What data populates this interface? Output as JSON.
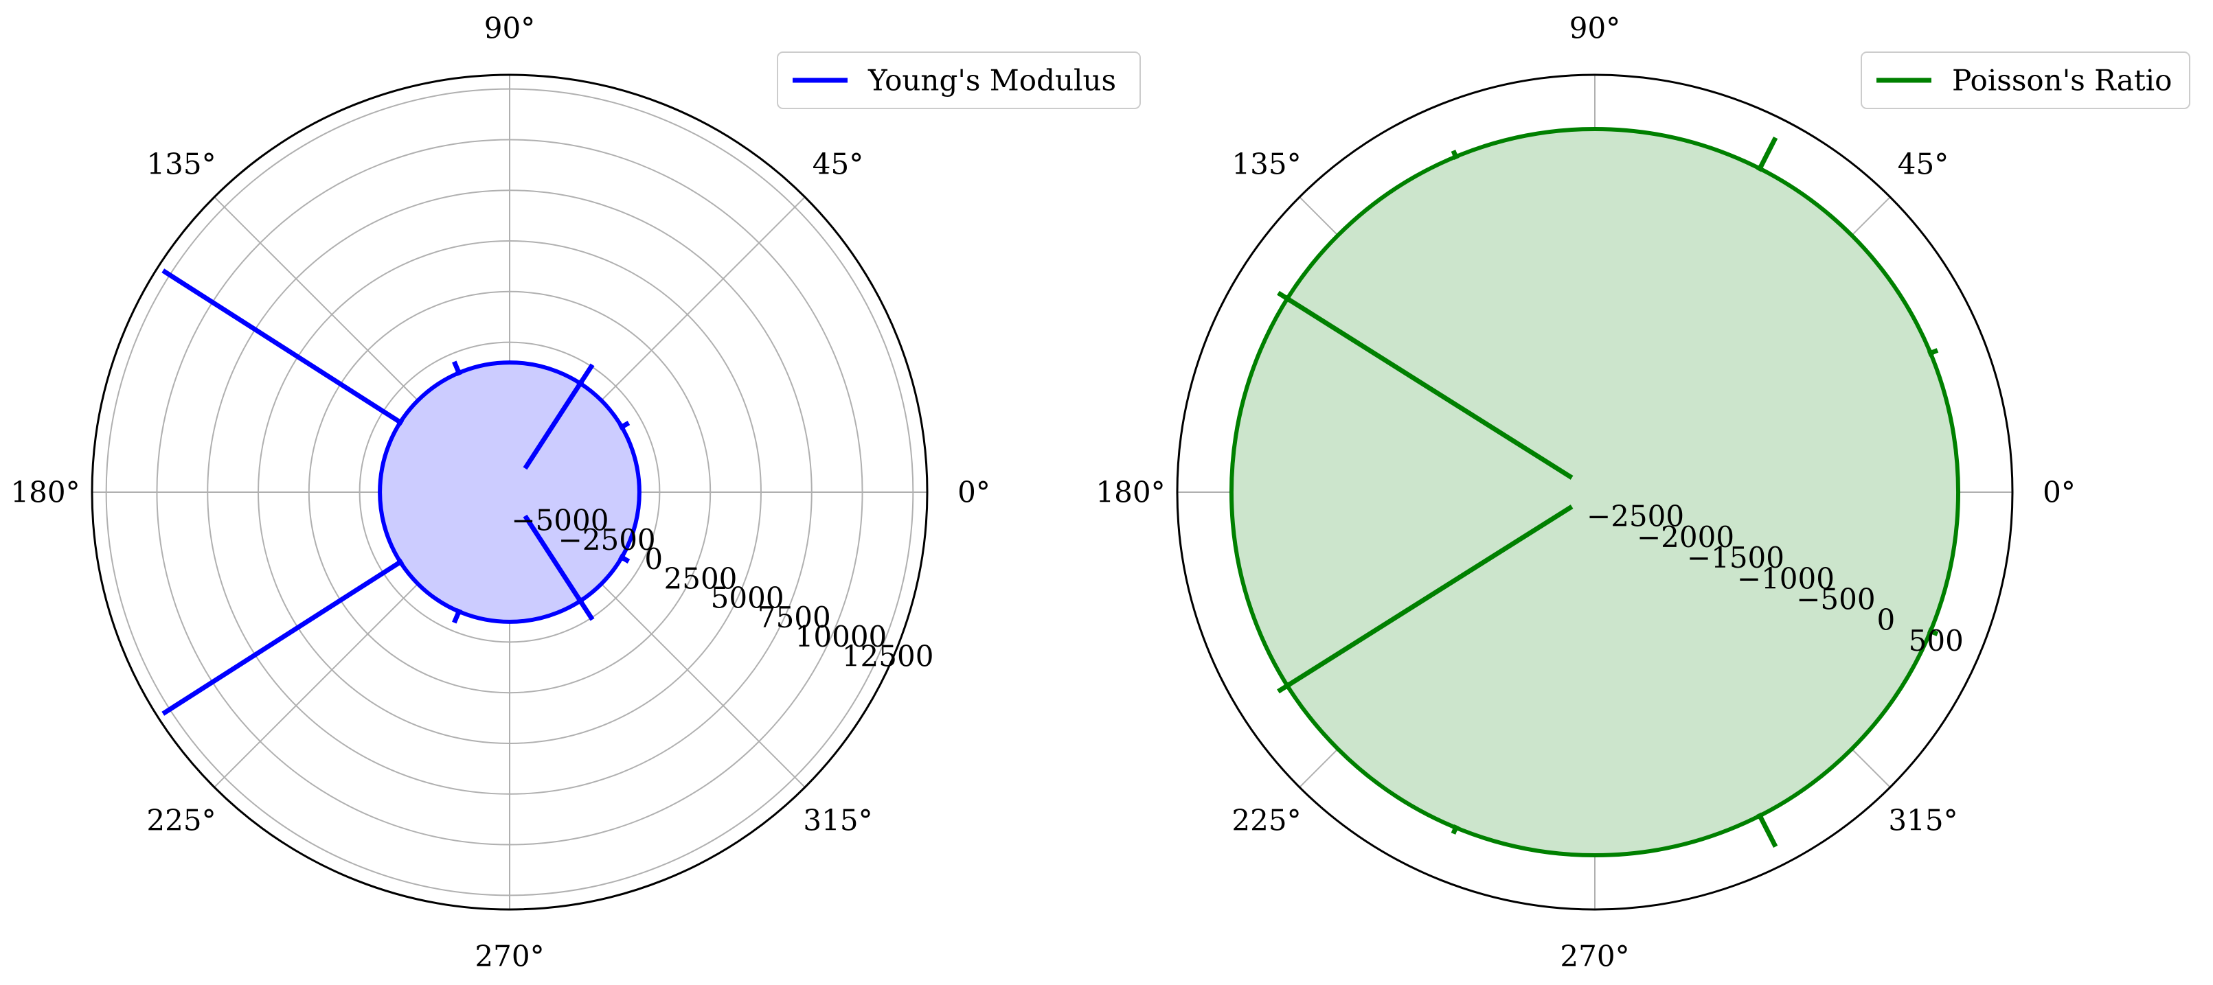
{
  "chart_data": [
    {
      "type": "polar_line",
      "title": "",
      "angle_unit": "deg",
      "angular_ticks": [
        "0°",
        "45°",
        "90°",
        "135°",
        "180°",
        "225°",
        "270°",
        "315°"
      ],
      "radial_ticks": [
        -5000,
        -2500,
        0,
        2500,
        5000,
        7500,
        10000,
        12500
      ],
      "radial_tick_labels": [
        "−5000",
        "−2500",
        "0",
        "2500",
        "5000",
        "7500",
        "10000",
        "12500"
      ],
      "rlim": [
        -7400,
        13200
      ],
      "grid": true,
      "legend_position": "top-right",
      "series": [
        {
          "name": "Young's Modulus",
          "color": "#0000ff",
          "fill": "#ccccff",
          "base_value": -1000,
          "spikes": [
            {
              "theta": 30.2,
              "value": -600,
              "inner": -1000
            },
            {
              "theta": 57,
              "value": 100,
              "inner": -6000
            },
            {
              "theta": 113,
              "value": -400,
              "inner": -1000
            },
            {
              "theta": 147.4,
              "value": 12900,
              "inner": -1000
            },
            {
              "theta": 212.6,
              "value": 12900,
              "inner": -1000
            },
            {
              "theta": 247,
              "value": -400,
              "inner": -1000
            },
            {
              "theta": 303,
              "value": 100,
              "inner": -6000
            },
            {
              "theta": 329.8,
              "value": -600,
              "inner": -1000
            }
          ]
        }
      ]
    },
    {
      "type": "polar_line",
      "title": "",
      "angle_unit": "deg",
      "angular_ticks": [
        "0°",
        "45°",
        "90°",
        "135°",
        "180°",
        "225°",
        "270°",
        "315°"
      ],
      "radial_ticks": [
        -2500,
        -2000,
        -1500,
        -1000,
        -500,
        0,
        500
      ],
      "radial_tick_labels": [
        "−2500",
        "−2000",
        "−1500",
        "−1000",
        "−500",
        "0",
        "500"
      ],
      "rlim": [
        -2850,
        1000
      ],
      "grid": true,
      "legend_position": "top-right",
      "series": [
        {
          "name": "Poisson's Ratio",
          "color": "#008000",
          "fill": "#cce5cc",
          "base_value": 500,
          "spikes": [
            {
              "theta": 22.5,
              "value": 570,
              "inner": 500
            },
            {
              "theta": 63,
              "value": 820,
              "inner": 500
            },
            {
              "theta": 112.5,
              "value": 560,
              "inner": 500
            },
            {
              "theta": 147.8,
              "value": 600,
              "inner": -2600
            },
            {
              "theta": 212.2,
              "value": 600,
              "inner": -2600
            },
            {
              "theta": 247.5,
              "value": 560,
              "inner": 500
            },
            {
              "theta": 297,
              "value": 820,
              "inner": 500
            },
            {
              "theta": 337.5,
              "value": 570,
              "inner": 500
            }
          ]
        }
      ]
    }
  ]
}
